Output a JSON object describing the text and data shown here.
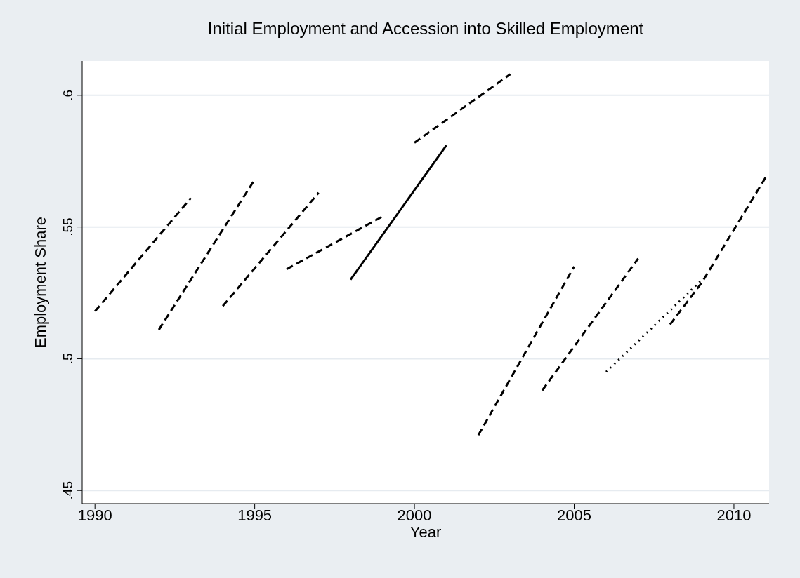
{
  "chart_data": {
    "type": "line",
    "title": "Initial Employment and Accession into Skilled Employment",
    "xlabel": "Year",
    "ylabel": "Employment Share",
    "xlim": [
      1989.6,
      2011.1
    ],
    "xticks": [
      1990,
      1995,
      2000,
      2005,
      2010
    ],
    "ylim": [
      0.445,
      0.613
    ],
    "yticks": [
      {
        "value": 0.45,
        "label": ".45"
      },
      {
        "value": 0.5,
        "label": ".5"
      },
      {
        "value": 0.55,
        "label": ".55"
      },
      {
        "value": 0.6,
        "label": ".6"
      }
    ],
    "grid": "y",
    "marker": "none",
    "series": [
      {
        "color": "#000000",
        "line_style": "dashed",
        "x": [
          1990,
          1993
        ],
        "values": [
          0.518,
          0.561
        ]
      },
      {
        "color": "#000000",
        "line_style": "dashed",
        "x": [
          1992,
          1995
        ],
        "values": [
          0.511,
          0.568
        ]
      },
      {
        "color": "#000000",
        "line_style": "dashed",
        "x": [
          1994,
          1997
        ],
        "values": [
          0.52,
          0.563
        ]
      },
      {
        "color": "#000000",
        "line_style": "dashed",
        "x": [
          1996,
          1999
        ],
        "values": [
          0.534,
          0.554
        ]
      },
      {
        "color": "#000000",
        "line_style": "solid",
        "x": [
          1998,
          2001
        ],
        "values": [
          0.53,
          0.581
        ]
      },
      {
        "color": "#000000",
        "line_style": "dashed",
        "x": [
          2000,
          2003
        ],
        "values": [
          0.582,
          0.608
        ]
      },
      {
        "color": "#000000",
        "line_style": "dashed",
        "x": [
          2002,
          2005
        ],
        "values": [
          0.471,
          0.535
        ]
      },
      {
        "color": "#000000",
        "line_style": "dashed",
        "x": [
          2004,
          2007
        ],
        "values": [
          0.488,
          0.538
        ]
      },
      {
        "color": "#000000",
        "line_style": "dotted",
        "x": [
          2006,
          2009
        ],
        "values": [
          0.495,
          0.53
        ]
      },
      {
        "color": "#000000",
        "line_style": "dashed",
        "x": [
          2008,
          2009,
          2010,
          2011
        ],
        "values": [
          0.513,
          0.529,
          0.549,
          0.569
        ]
      }
    ]
  }
}
